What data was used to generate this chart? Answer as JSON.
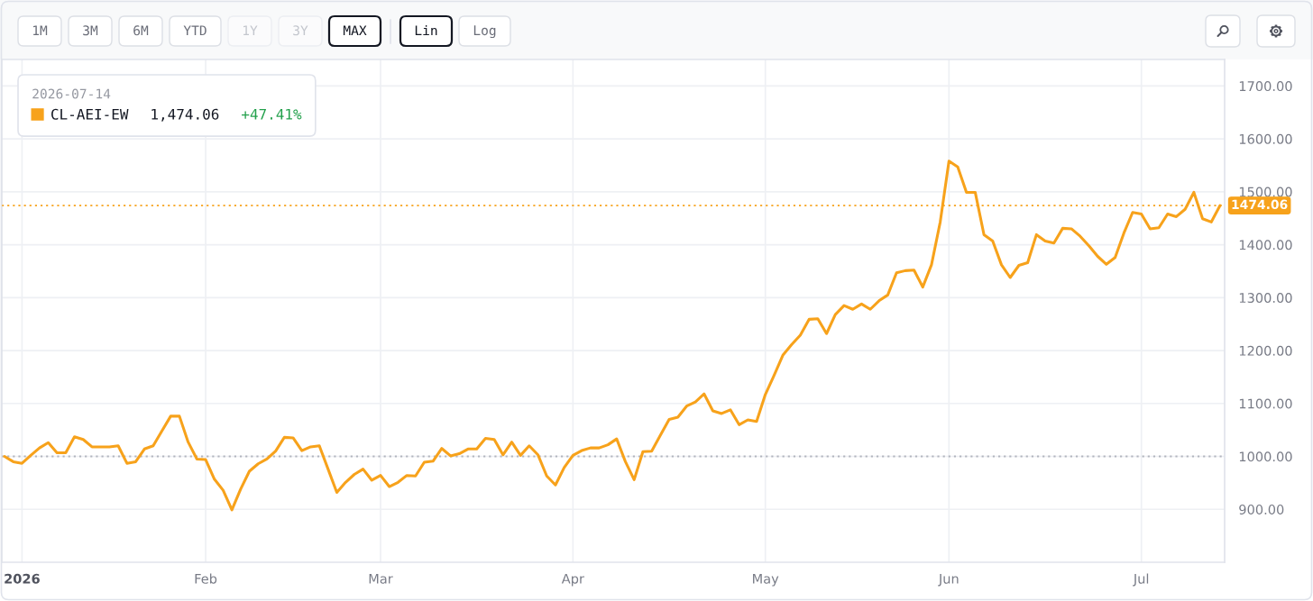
{
  "chart_data": {
    "type": "line",
    "categories": [
      null,
      null,
      "2026",
      null,
      null,
      null,
      null,
      null,
      null,
      null,
      null,
      null,
      null,
      null,
      null,
      null,
      null,
      null,
      null,
      null,
      null,
      null,
      null,
      "Feb",
      null,
      null,
      null,
      null,
      null,
      null,
      null,
      null,
      null,
      null,
      null,
      null,
      null,
      null,
      null,
      null,
      null,
      null,
      null,
      "Mar",
      null,
      null,
      null,
      null,
      null,
      null,
      null,
      null,
      null,
      null,
      null,
      null,
      null,
      null,
      null,
      null,
      null,
      null,
      null,
      null,
      null,
      "Apr",
      null,
      null,
      null,
      null,
      null,
      null,
      null,
      null,
      null,
      null,
      null,
      null,
      null,
      null,
      null,
      null,
      null,
      null,
      null,
      null,
      null,
      "May",
      null,
      null,
      null,
      null,
      null,
      null,
      null,
      null,
      null,
      null,
      null,
      null,
      null,
      null,
      null,
      null,
      null,
      null,
      null,
      null,
      "Jun",
      null,
      null,
      null,
      null,
      null,
      null,
      null,
      null,
      null,
      null,
      null,
      null,
      null,
      null,
      null,
      null,
      null,
      null,
      null,
      null,
      null,
      "Jul",
      null,
      null,
      null,
      null,
      null,
      null,
      null,
      null,
      null
    ],
    "series": [
      {
        "name": "CL-AEI-EW",
        "color": "#f7a21b",
        "values": [
          1000,
          990,
          987,
          1002,
          1016,
          1026,
          1007,
          1007,
          1037,
          1032,
          1018,
          1018,
          1018,
          1020,
          987,
          990,
          1014,
          1020,
          1048,
          1076,
          1076,
          1027,
          995,
          994,
          957,
          936,
          899,
          938,
          972,
          986,
          995,
          1010,
          1036,
          1035,
          1011,
          1018,
          1020,
          976,
          932,
          951,
          966,
          976,
          955,
          964,
          943,
          951,
          964,
          963,
          989,
          991,
          1015,
          1001,
          1005,
          1014,
          1014,
          1034,
          1032,
          1003,
          1027,
          1002,
          1020,
          1003,
          963,
          946,
          979,
          1002,
          1011,
          1016,
          1016,
          1022,
          1033,
          990,
          956,
          1009,
          1010,
          1040,
          1070,
          1074,
          1095,
          1103,
          1118,
          1086,
          1081,
          1088,
          1060,
          1069,
          1066,
          1117,
          1153,
          1191,
          1211,
          1229,
          1259,
          1260,
          1232,
          1268,
          1285,
          1278,
          1288,
          1278,
          1294,
          1305,
          1347,
          1351,
          1352,
          1320,
          1362,
          1443,
          1558,
          1547,
          1499,
          1499,
          1419,
          1407,
          1362,
          1338,
          1361,
          1366,
          1419,
          1407,
          1403,
          1431,
          1430,
          1416,
          1398,
          1378,
          1363,
          1376,
          1422,
          1461,
          1458,
          1430,
          1432,
          1458,
          1453,
          1467,
          1499,
          1449,
          1443,
          1474.06
        ]
      }
    ],
    "ylim": [
      800,
      1750
    ],
    "yticks": [
      {
        "value": 900,
        "label": "900.00"
      },
      {
        "value": 1000,
        "label": "1000.00"
      },
      {
        "value": 1100,
        "label": "1100.00"
      },
      {
        "value": 1200,
        "label": "1200.00"
      },
      {
        "value": 1300,
        "label": "1300.00"
      },
      {
        "value": 1400,
        "label": "1400.00"
      },
      {
        "value": 1500,
        "label": "1500.00"
      },
      {
        "value": 1600,
        "label": "1600.00"
      },
      {
        "value": 1700,
        "label": "1700.00"
      }
    ],
    "grid": true,
    "legend": "top left",
    "legend_title": "2026-07-14",
    "ref_lines": [
      {
        "axis": "y",
        "value": 1474.06,
        "label": "1474.06",
        "color": "#f7a21b",
        "line_style": "dotted"
      },
      {
        "axis": "y",
        "value": 1000,
        "color": "#b2b5be",
        "line_style": "dotted"
      }
    ],
    "annotations": [
      "1,474.06",
      "+47.41%",
      "1M",
      "3M",
      "6M",
      "YTD",
      "1Y",
      "3Y",
      "MAX",
      "Lin",
      "Log"
    ]
  }
}
